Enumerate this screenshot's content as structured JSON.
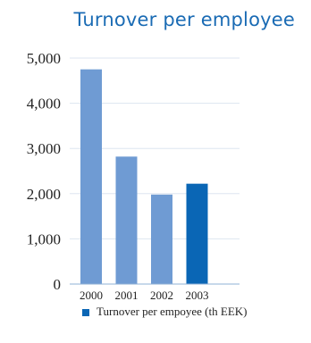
{
  "chart_data": {
    "type": "bar",
    "title": "Turnover per employee",
    "categories": [
      "2000",
      "2001",
      "2002",
      "2003"
    ],
    "values": [
      4750,
      2820,
      1980,
      2220
    ],
    "highlight_index": 3,
    "y_ticks": [
      "0",
      "1,000",
      "2,000",
      "3,000",
      "4,000",
      "5,000"
    ],
    "ylim": [
      0,
      5000
    ],
    "grid": true,
    "legend": [
      {
        "label": "Turnover per empoyee (th EEK)"
      }
    ],
    "legend_position": "bottom",
    "colors": {
      "bar": "#6f9bd3",
      "highlight": "#0a66b5",
      "grid": "#dde6f0",
      "axis": "#8fb0d6",
      "title": "#1a6bb4"
    }
  }
}
